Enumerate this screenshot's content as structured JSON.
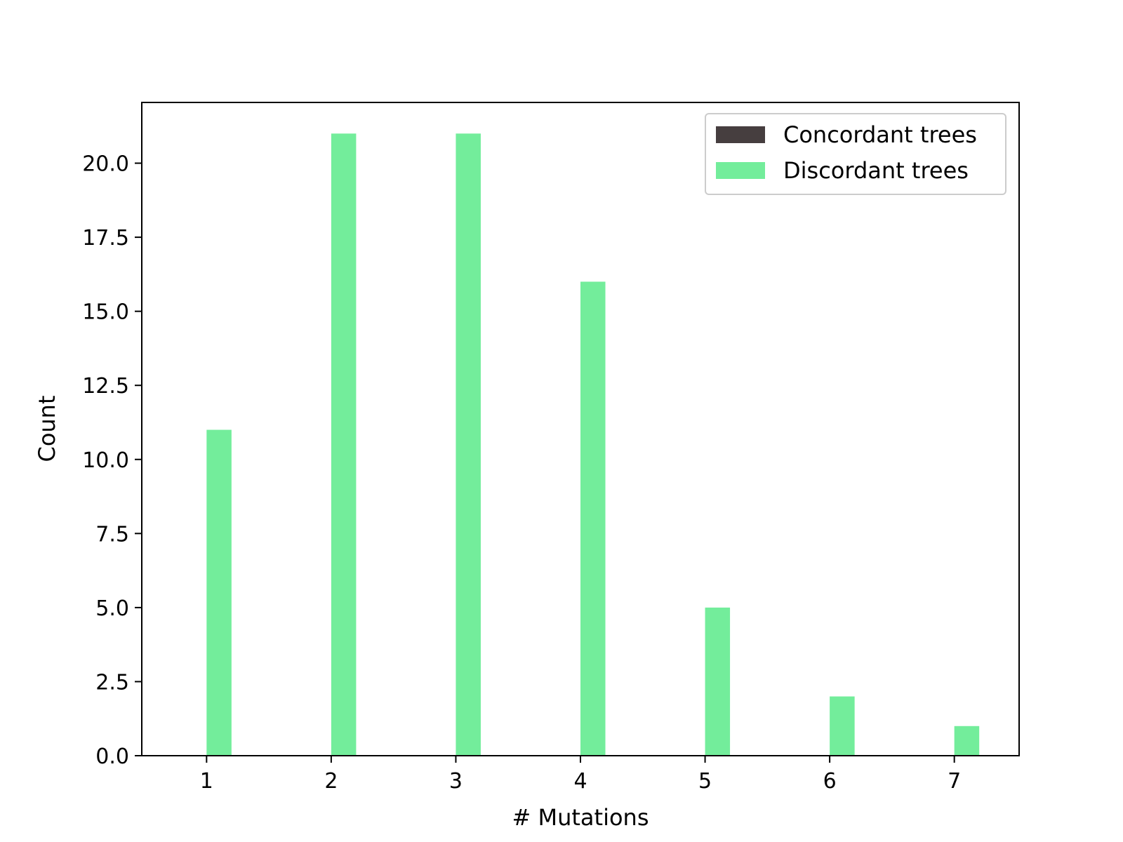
{
  "chart_data": {
    "type": "bar",
    "title": "",
    "xlabel": "# Mutations",
    "ylabel": "Count",
    "categories": [
      1,
      2,
      3,
      4,
      5,
      6,
      7
    ],
    "x_ticks": [
      "1",
      "2",
      "3",
      "4",
      "5",
      "6",
      "7"
    ],
    "xlim": [
      0.48,
      7.52
    ],
    "ylim": [
      0,
      22.05
    ],
    "y_ticks": [
      "0.0",
      "2.5",
      "5.0",
      "7.5",
      "10.0",
      "12.5",
      "15.0",
      "17.5",
      "20.0"
    ],
    "y_tick_values": [
      0,
      2.5,
      5,
      7.5,
      10,
      12.5,
      15,
      17.5,
      20
    ],
    "series": [
      {
        "name": "Concordant trees",
        "color": "#463e3f",
        "values": [
          0,
          0,
          0,
          0,
          0,
          0,
          0
        ]
      },
      {
        "name": "Discordant trees",
        "color": "#73ed9b",
        "values": [
          11,
          21,
          21,
          16,
          5,
          2,
          1
        ]
      }
    ],
    "grid": false,
    "legend": "top-right"
  }
}
